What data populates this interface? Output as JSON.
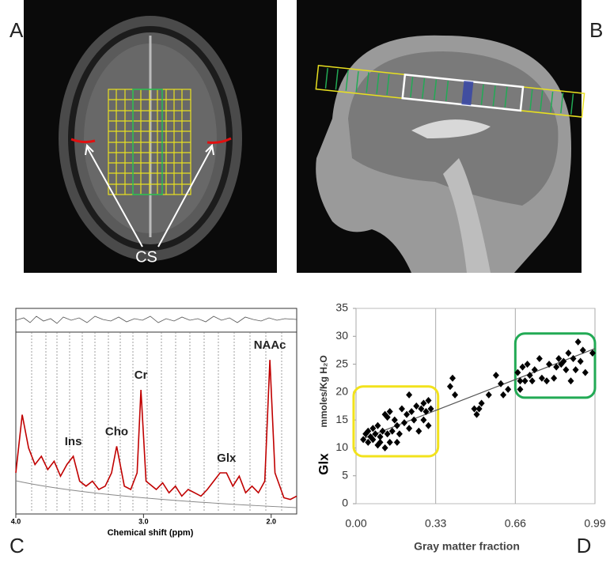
{
  "images": [
    {
      "panel_label": "A",
      "annotation": "CS"
    },
    {
      "panel_label": "B"
    }
  ],
  "chart_data": [
    {
      "type": "line",
      "panel_label": "C",
      "xlabel": "Chemical shift (ppm)",
      "x": [
        4.0,
        3.95,
        3.9,
        3.85,
        3.8,
        3.75,
        3.7,
        3.65,
        3.6,
        3.55,
        3.5,
        3.45,
        3.4,
        3.35,
        3.3,
        3.25,
        3.21,
        3.15,
        3.1,
        3.05,
        3.02,
        2.98,
        2.9,
        2.85,
        2.8,
        2.75,
        2.7,
        2.65,
        2.6,
        2.55,
        2.5,
        2.45,
        2.4,
        2.35,
        2.3,
        2.25,
        2.2,
        2.15,
        2.1,
        2.05,
        2.01,
        1.97,
        1.9,
        1.85,
        1.8
      ],
      "series": [
        {
          "color": "#c00000",
          "values": [
            20,
            55,
            35,
            25,
            30,
            22,
            27,
            18,
            25,
            30,
            15,
            12,
            15,
            10,
            12,
            20,
            36,
            12,
            10,
            20,
            70,
            15,
            10,
            14,
            8,
            12,
            6,
            10,
            8,
            6,
            10,
            15,
            20,
            20,
            12,
            18,
            8,
            12,
            8,
            15,
            88,
            20,
            5,
            4,
            6
          ]
        }
      ],
      "xlim": [
        4.0,
        1.8
      ],
      "ylim": [
        0,
        100
      ],
      "xticks": [
        {
          "value": 4,
          "label": "4.0"
        },
        {
          "value": 3,
          "label": "3.0"
        },
        {
          "value": 2,
          "label": "2.0"
        }
      ],
      "annotations": [
        {
          "text": "Ins",
          "x": 3.55
        },
        {
          "text": "Cho",
          "x": 3.21
        },
        {
          "text": "Cr",
          "x": 3.02
        },
        {
          "text": "Glx",
          "x": 2.35
        },
        {
          "text": "NAAc",
          "x": 2.01
        }
      ]
    },
    {
      "type": "scatter",
      "panel_label": "D",
      "xlabel": "Gray matter fraction",
      "ylabel": "Glx",
      "ylabel_units": "mmoles/Kg H₂O",
      "x": [
        0.03,
        0.04,
        0.05,
        0.05,
        0.06,
        0.07,
        0.07,
        0.08,
        0.09,
        0.09,
        0.1,
        0.1,
        0.11,
        0.12,
        0.12,
        0.13,
        0.13,
        0.14,
        0.14,
        0.15,
        0.16,
        0.17,
        0.17,
        0.18,
        0.19,
        0.2,
        0.21,
        0.22,
        0.22,
        0.23,
        0.24,
        0.25,
        0.26,
        0.27,
        0.28,
        0.28,
        0.29,
        0.3,
        0.3,
        0.31,
        0.39,
        0.4,
        0.41,
        0.49,
        0.5,
        0.51,
        0.52,
        0.55,
        0.58,
        0.6,
        0.61,
        0.63,
        0.67,
        0.68,
        0.68,
        0.69,
        0.7,
        0.71,
        0.72,
        0.73,
        0.74,
        0.76,
        0.77,
        0.79,
        0.8,
        0.82,
        0.83,
        0.84,
        0.85,
        0.86,
        0.87,
        0.88,
        0.89,
        0.9,
        0.91,
        0.92,
        0.93,
        0.94,
        0.95,
        0.98
      ],
      "series": [
        {
          "color": "#000000",
          "values": [
            11.5,
            12.5,
            11,
            13,
            12,
            11.5,
            13.5,
            12.5,
            10.5,
            14,
            12,
            11,
            13,
            10,
            16,
            15.5,
            12.5,
            11,
            16.5,
            13,
            15,
            11,
            14,
            12.5,
            17,
            14.5,
            16,
            19.5,
            13.5,
            16.5,
            15,
            17.5,
            13,
            17,
            15,
            18,
            16.5,
            14,
            18.5,
            17,
            21,
            22.5,
            19.5,
            17,
            16,
            17,
            18,
            19.5,
            23,
            21.5,
            19.5,
            20.5,
            23.5,
            22,
            20.5,
            24.5,
            22,
            25,
            23,
            22,
            24,
            26,
            22.5,
            22,
            25,
            22.5,
            24.5,
            26,
            25,
            25.5,
            24,
            27,
            22,
            26,
            24,
            29,
            25.5,
            27.5,
            23.5,
            27
          ]
        }
      ],
      "trendline": {
        "color": "#555555",
        "x": [
          0.02,
          0.99
        ],
        "y": [
          11.5,
          27.8
        ]
      },
      "highlight_boxes": [
        {
          "color": "#f2e21c",
          "xlim": [
            -0.01,
            0.34
          ],
          "ylim": [
            8.5,
            21
          ]
        },
        {
          "color": "#22aa55",
          "xlim": [
            0.66,
            0.99
          ],
          "ylim": [
            19,
            30.5
          ]
        }
      ],
      "xlim": [
        0,
        0.99
      ],
      "ylim": [
        0,
        35
      ],
      "xticks": [
        {
          "value": 0,
          "label": "0.00"
        },
        0.33,
        0.66,
        0.99
      ],
      "yticks": [
        0,
        5,
        10,
        15,
        20,
        25,
        30,
        35
      ],
      "grid": "x"
    }
  ]
}
